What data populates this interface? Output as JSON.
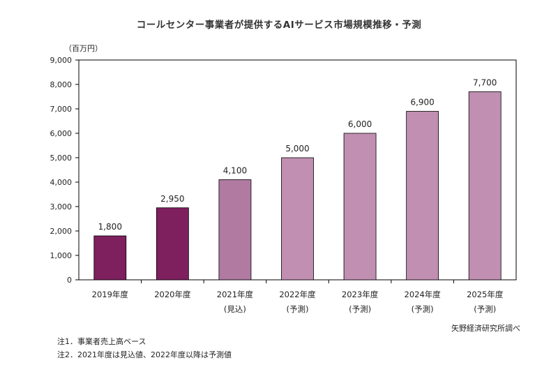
{
  "title": "コールセンター事業者が提供するAIサービス市場規模推移・予測",
  "unit_label": "（百万円）",
  "source": "矢野経済研究所調べ",
  "notes": [
    "注1．事業者売上高ベース",
    "注2．2021年度は見込値、2022年度以降は予測値"
  ],
  "colors": {
    "actual": "#7e1f5e",
    "estimate": "#b07aa1",
    "forecast": "#c08fb1",
    "axis": "#000000"
  },
  "chart_data": {
    "type": "bar",
    "title": "コールセンター事業者が提供するAIサービス市場規模推移・予測",
    "ylabel": "（百万円）",
    "xlabel": "",
    "ylim": [
      0,
      9000
    ],
    "yticks": [
      "0",
      "1,000",
      "2,000",
      "3,000",
      "4,000",
      "5,000",
      "6,000",
      "7,000",
      "8,000",
      "9,000"
    ],
    "grid": false,
    "categories": [
      [
        "2019年度"
      ],
      [
        "2020年度"
      ],
      [
        "2021年度",
        "(見込)"
      ],
      [
        "2022年度",
        "(予測)"
      ],
      [
        "2023年度",
        "(予測)"
      ],
      [
        "2024年度",
        "(予測)"
      ],
      [
        "2025年度",
        "(予測)"
      ]
    ],
    "values": [
      1800,
      2950,
      4100,
      5000,
      6000,
      6900,
      7700
    ],
    "data_labels": [
      "1,800",
      "2,950",
      "4,100",
      "5,000",
      "6,000",
      "6,900",
      "7,700"
    ],
    "bar_status": [
      "actual",
      "actual",
      "estimate",
      "forecast",
      "forecast",
      "forecast",
      "forecast"
    ]
  }
}
